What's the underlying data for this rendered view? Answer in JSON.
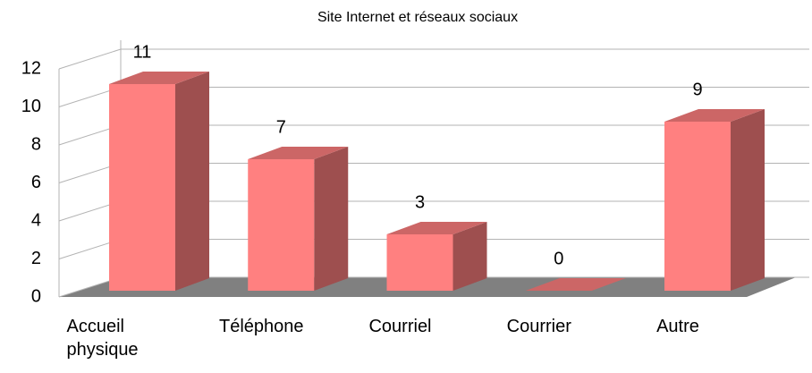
{
  "chart_data": {
    "type": "bar3d",
    "title": "Site Internet et réseaux sociaux",
    "categories": [
      "Accueil physique",
      "Téléphone",
      "Courriel",
      "Courrier",
      "Autre"
    ],
    "values": [
      11,
      7,
      3,
      0,
      9
    ],
    "color": "#ff8080",
    "ylim": [
      0,
      12
    ],
    "yticks": [
      0,
      2,
      4,
      6,
      8,
      10,
      12
    ],
    "grid": true
  }
}
